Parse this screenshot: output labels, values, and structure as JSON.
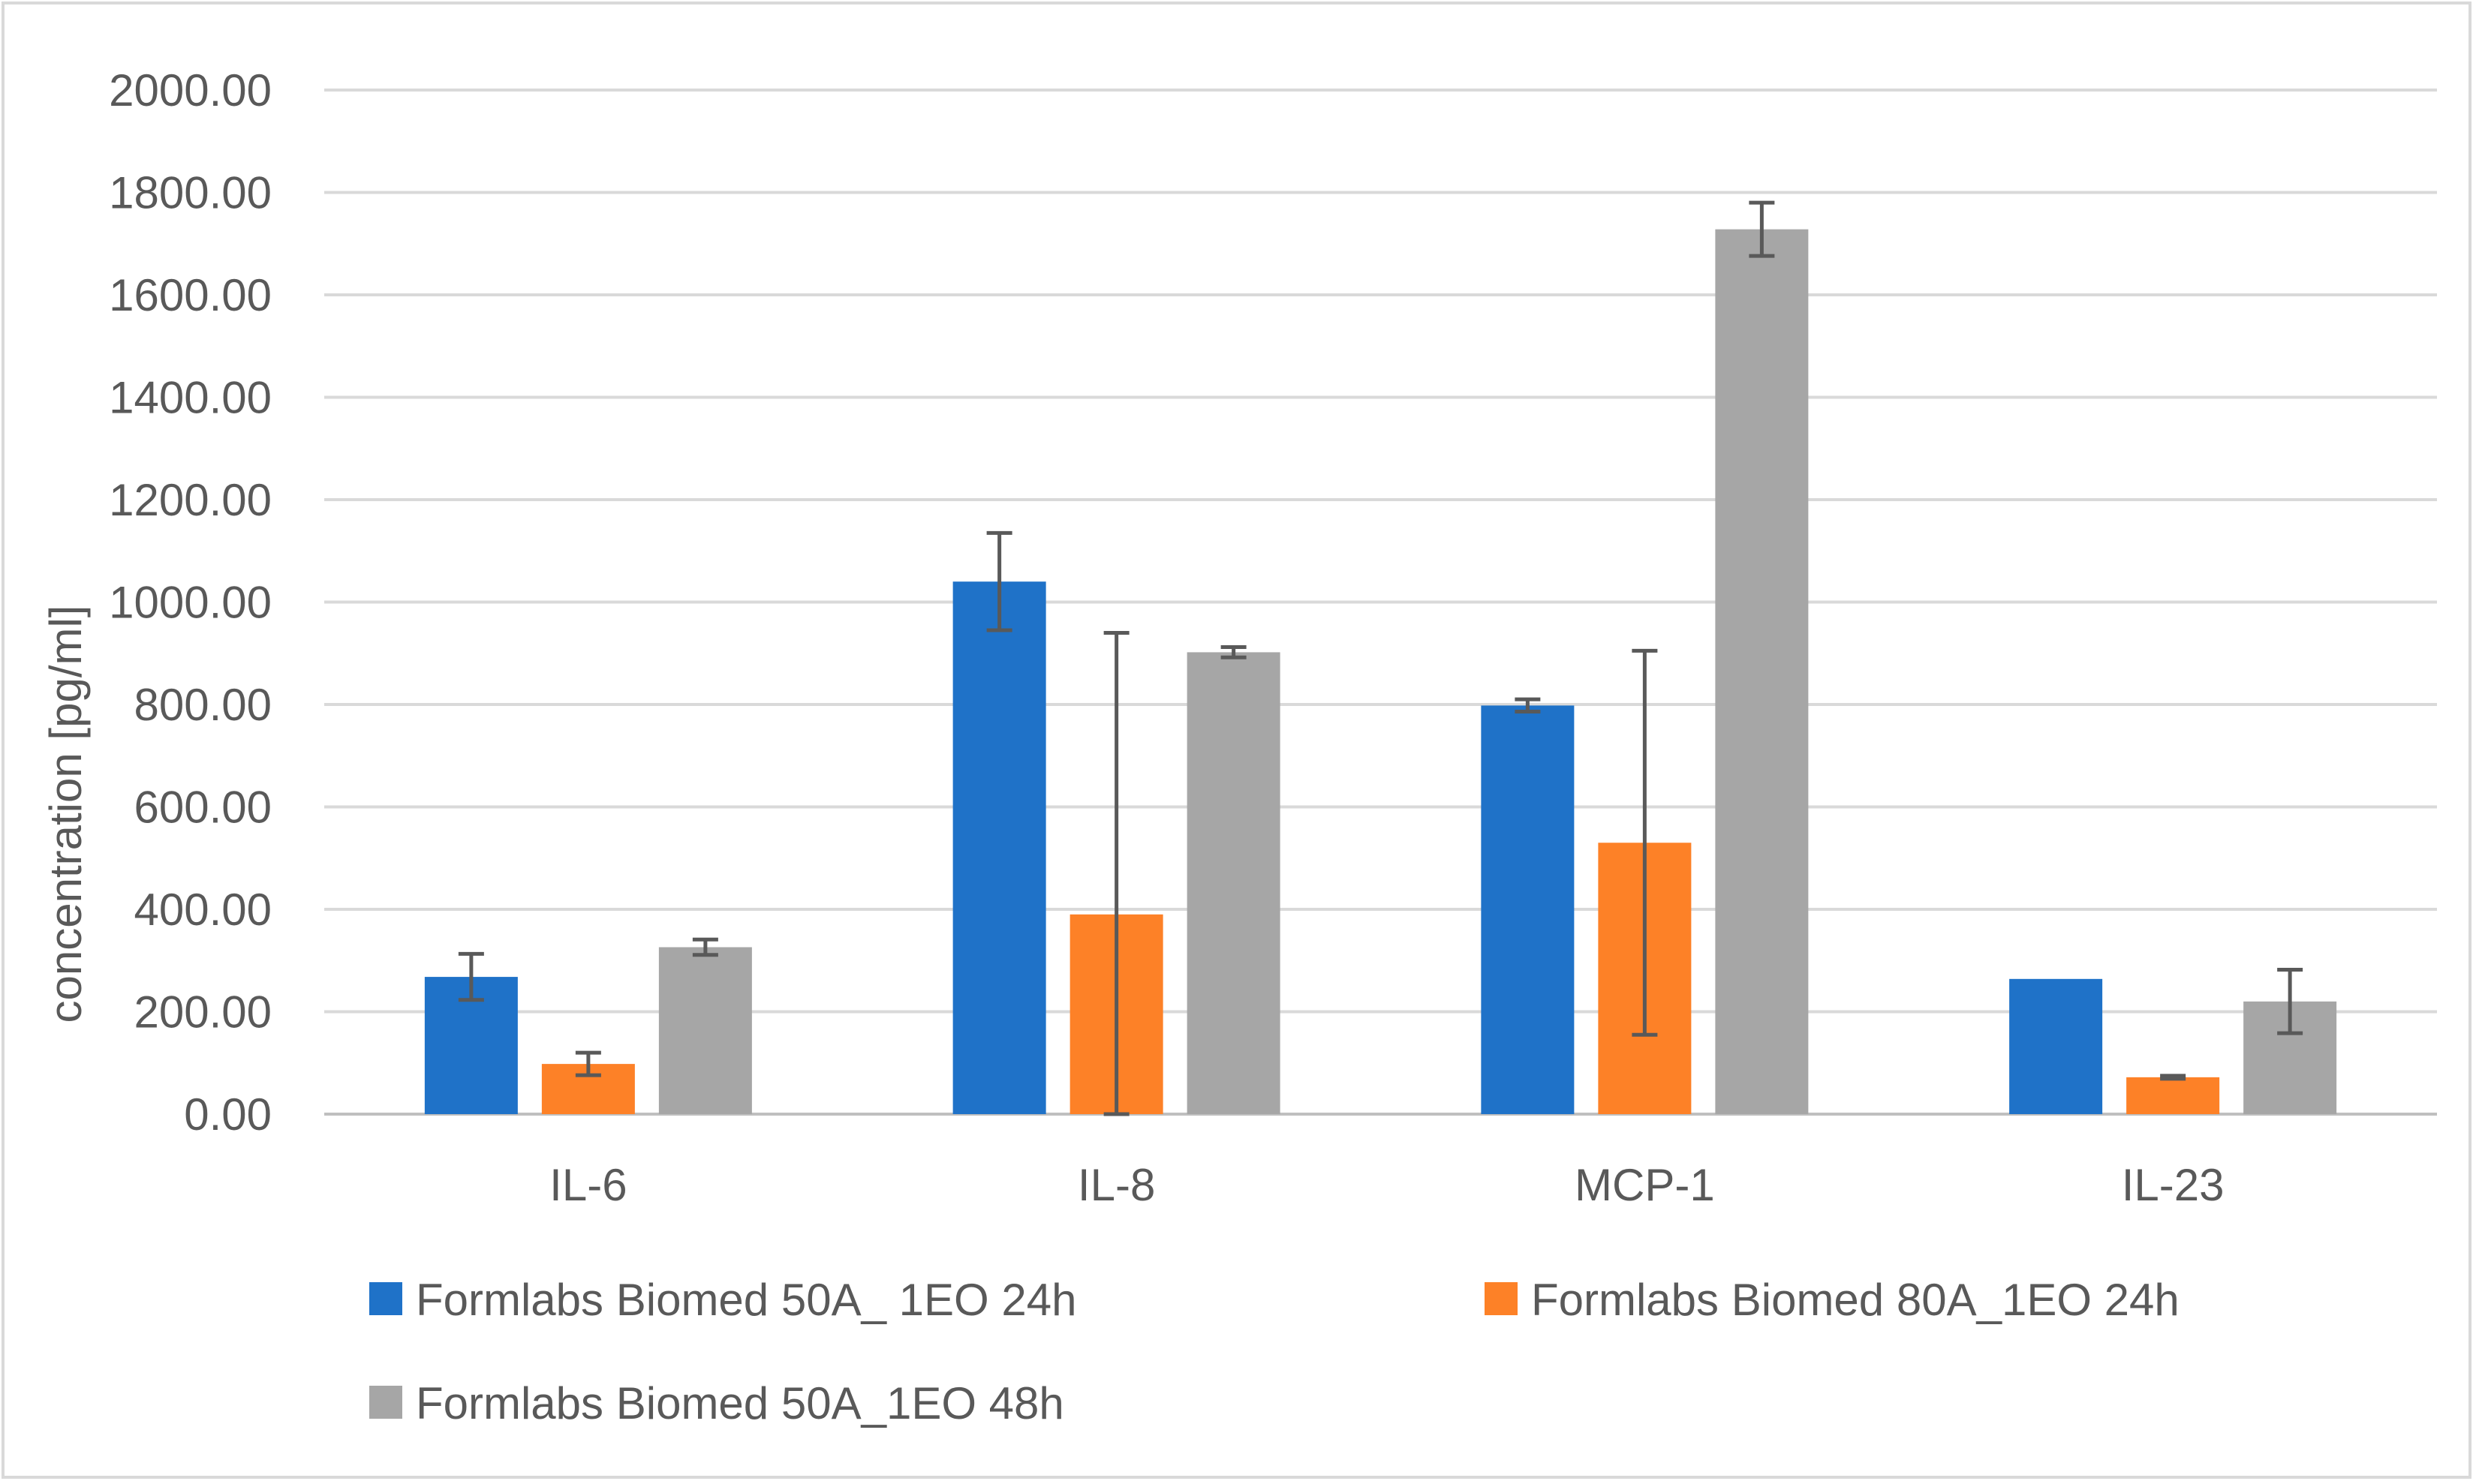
{
  "chart_data": {
    "type": "bar",
    "title": "",
    "xlabel": "",
    "ylabel": "concentration [pg/ml]",
    "ylim": [
      0,
      2000
    ],
    "ytick_step": 200,
    "ytick_labels": [
      "0.00",
      "200.00",
      "400.00",
      "600.00",
      "800.00",
      "1000.00",
      "1200.00",
      "1400.00",
      "1600.00",
      "1800.00",
      "2000.00"
    ],
    "grid": true,
    "legend_position": "bottom",
    "categories": [
      "IL-6",
      "IL-8",
      "MCP-1",
      "IL-23"
    ],
    "series": [
      {
        "name": "Formlabs Biomed 50A_ 1EO 24h",
        "color": "#1f72c8",
        "values": [
          268,
          1040,
          798,
          264
        ],
        "error": [
          45,
          95,
          12,
          0
        ]
      },
      {
        "name": "Formlabs Biomed 80A_1EO 24h",
        "color": "#fd8127",
        "values": [
          98,
          390,
          530,
          72
        ],
        "error": [
          22,
          550,
          375,
          3
        ]
      },
      {
        "name": "Formlabs Biomed 50A_1EO 48h",
        "color": "#a6a6a6",
        "values": [
          326,
          902,
          1728,
          220
        ],
        "error": [
          15,
          10,
          52,
          62
        ]
      }
    ]
  }
}
